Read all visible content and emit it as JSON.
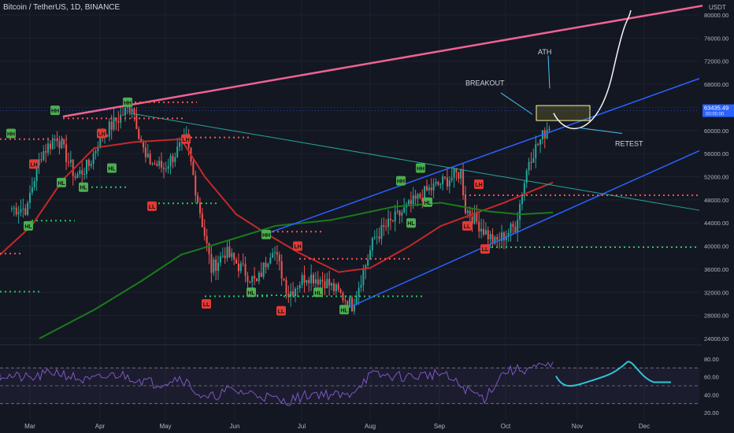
{
  "title": "Bitcoin / TetherUS, 1D, BINANCE",
  "currency": "USDT",
  "current_price": "63435.49",
  "price_sub": "00:00:00",
  "annotations": {
    "ath": "ATH",
    "breakout": "BREAKOUT",
    "retest": "RETEST"
  },
  "months": [
    "Mar",
    "Apr",
    "May",
    "Jun",
    "Jul",
    "Aug",
    "Sep",
    "Oct",
    "Nov",
    "Dec"
  ],
  "price_ticks": [
    "80000.00",
    "76000.00",
    "72000.00",
    "68000.00",
    "64000.00",
    "60000.00",
    "56000.00",
    "52000.00",
    "48000.00",
    "44000.00",
    "40000.00",
    "36000.00",
    "32000.00",
    "28000.00",
    "24000.00"
  ],
  "rsi_ticks": [
    "80.00",
    "60.00",
    "40.00",
    "20.00"
  ],
  "colors": {
    "bg": "#131722",
    "up": "#26a69a",
    "down": "#ef5350",
    "grid": "#1e222d",
    "upper_line": "#f06292",
    "channel": "#2962ff",
    "ma_red": "#c62828",
    "ma_green": "#1b7a1b",
    "diag": "#26a69a",
    "rsi": "#7e57c2",
    "rsi_proj": "#2ec4d6",
    "hh": "#22c55e",
    "ll": "#ef4444",
    "label_bg_up": "#4caf50",
    "label_bg_down": "#e53935"
  },
  "chart_data": {
    "type": "candlestick",
    "symbol": "Bitcoin / TetherUS",
    "timeframe": "1D",
    "exchange": "BINANCE",
    "ylim": [
      24000,
      82000
    ],
    "rsi_ylim": [
      20,
      80
    ],
    "closes_anchor": [
      [
        "Mar",
        49000
      ],
      [
        "Mar+5",
        56000
      ],
      [
        "Mar+12",
        59000
      ],
      [
        "Mar+20",
        52000
      ],
      [
        "Mar+26",
        54000
      ],
      [
        "Apr",
        58800
      ],
      [
        "Apr+14",
        64500
      ],
      [
        "Apr+20",
        55000
      ],
      [
        "Apr+28",
        53500
      ],
      [
        "May+8",
        58500
      ],
      [
        "May+12",
        50000
      ],
      [
        "May+19",
        36000
      ],
      [
        "May+25",
        39000
      ],
      [
        "Jun+8",
        33500
      ],
      [
        "Jun+15",
        40000
      ],
      [
        "Jun+22",
        31800
      ],
      [
        "Jun+30",
        35000
      ],
      [
        "Jul+8",
        34000
      ],
      [
        "Jul+20",
        29800
      ],
      [
        "Jul+30",
        41500
      ],
      [
        "Aug+10",
        45500
      ],
      [
        "Aug+22",
        49500
      ],
      [
        "Sep+6",
        52800
      ],
      [
        "Sep+8",
        46500
      ],
      [
        "Sep+21",
        40500
      ],
      [
        "Sep+30",
        43500
      ],
      [
        "Oct+6",
        55000
      ],
      [
        "Oct+15",
        61000
      ],
      [
        "Oct+20",
        66000
      ],
      [
        "Oct+22",
        63400
      ]
    ],
    "pivots": [
      {
        "label": "HH",
        "price": 63500
      },
      {
        "label": "HH",
        "price": 59500
      },
      {
        "label": "HL",
        "price": 51000
      },
      {
        "label": "HL",
        "price": 43500
      },
      {
        "label": "LH",
        "price": 58500
      },
      {
        "label": "LH",
        "price": 57500
      },
      {
        "label": "HH",
        "price": 64900
      },
      {
        "label": "HL",
        "price": 53500
      },
      {
        "label": "LH",
        "price": 60800
      },
      {
        "label": "LL",
        "price": 47000
      },
      {
        "label": "LL",
        "price": 30000
      },
      {
        "label": "HL",
        "price": 32500
      },
      {
        "label": "HH",
        "price": 42000
      },
      {
        "label": "LH",
        "price": 40000
      },
      {
        "label": "LL",
        "price": 28800
      },
      {
        "label": "HL",
        "price": 32000
      },
      {
        "label": "HL",
        "price": 29000
      },
      {
        "label": "HH",
        "price": 51500
      },
      {
        "label": "HH",
        "price": 53500
      },
      {
        "label": "HL",
        "price": 46000
      },
      {
        "label": "HL",
        "price": 44000
      },
      {
        "label": "LH",
        "price": 51000
      },
      {
        "label": "LL",
        "price": 42500
      },
      {
        "label": "LL",
        "price": 39500
      }
    ],
    "annotations": [
      "ATH",
      "BREAKOUT",
      "RETEST"
    ]
  }
}
